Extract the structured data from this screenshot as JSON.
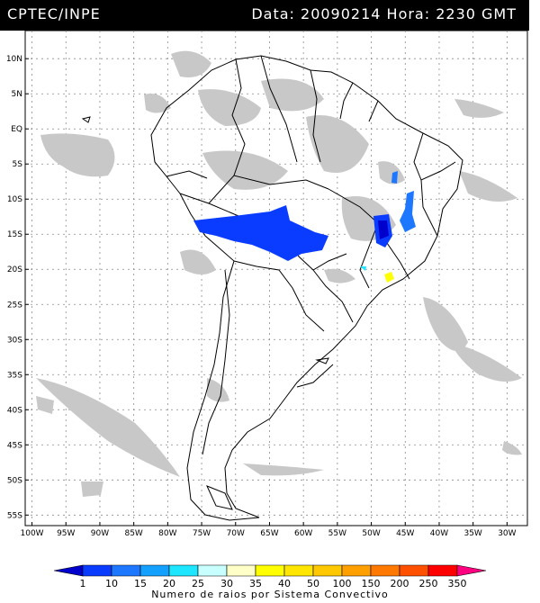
{
  "header": {
    "left": "CPTEC/INPE",
    "right": "Data: 20090214 Hora: 2230 GMT"
  },
  "axes": {
    "lat_labels": [
      "10N",
      "5N",
      "EQ",
      "5S",
      "10S",
      "15S",
      "20S",
      "25S",
      "30S",
      "35S",
      "40S",
      "45S",
      "50S",
      "55S"
    ],
    "lat_values": [
      10,
      5,
      0,
      -5,
      -10,
      -15,
      -20,
      -25,
      -30,
      -35,
      -40,
      -45,
      -50,
      -55
    ],
    "lon_labels": [
      "100W",
      "95W",
      "90W",
      "85W",
      "80W",
      "75W",
      "70W",
      "65W",
      "60W",
      "55W",
      "50W",
      "45W",
      "40W",
      "35W",
      "30W"
    ],
    "lon_values": [
      -100,
      -95,
      -90,
      -85,
      -80,
      -75,
      -70,
      -65,
      -60,
      -55,
      -50,
      -45,
      -40,
      -35,
      -30
    ],
    "lon_range": [
      -101,
      -27
    ],
    "lat_range": [
      -56.5,
      14
    ],
    "grid": true
  },
  "colorbar": {
    "title": "Numero de raios por Sistema Convectivo",
    "labels": [
      "1",
      "10",
      "15",
      "20",
      "25",
      "30",
      "35",
      "40",
      "50",
      "100",
      "150",
      "200",
      "250",
      "350"
    ],
    "colors": [
      "#0000cc",
      "#0a3cff",
      "#1e78ff",
      "#14a0ff",
      "#1ee6ff",
      "#c8ffff",
      "#ffffc8",
      "#ffff00",
      "#ffe600",
      "#ffc800",
      "#ffa000",
      "#ff7800",
      "#ff5000",
      "#ff0000",
      "#ff0080"
    ]
  },
  "layers": {
    "land_color": "#ffffff",
    "cloud_color": "#c8c8c8",
    "border_color": "#000000"
  }
}
